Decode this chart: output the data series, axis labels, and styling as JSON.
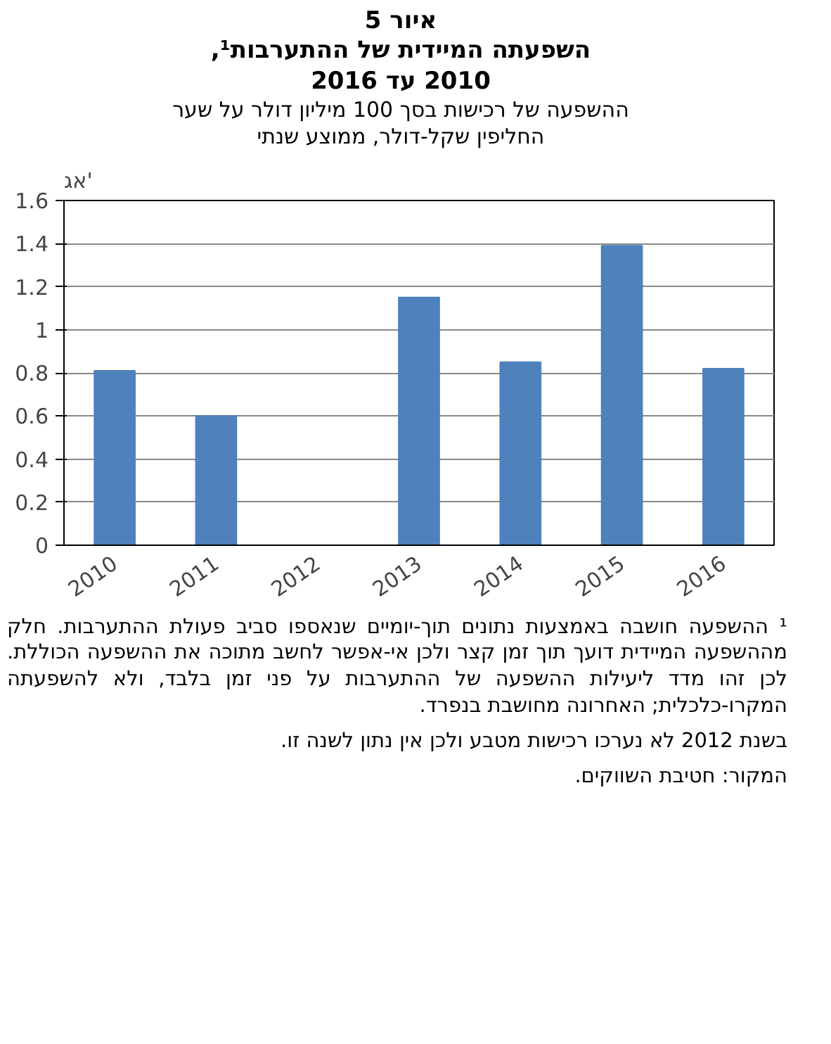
{
  "chart_data": {
    "type": "bar",
    "title": "איור 5\nהשפעתה המיידית של ההתערבות¹,\n2010 עד 2016",
    "subtitle": "ההשפעה של רכישות בסך 100 מיליון דולר על שער\nהחליפין שקל-דולר, ממוצע שנתי",
    "ylabel": "אג'",
    "categories": [
      "2010",
      "2011",
      "2012",
      "2013",
      "2014",
      "2015",
      "2016"
    ],
    "values": [
      0.81,
      0.6,
      null,
      1.15,
      0.85,
      1.39,
      0.82
    ],
    "color": "#4f81bd",
    "ylim": [
      0,
      1.6
    ],
    "yticks": [
      0,
      0.2,
      0.4,
      0.6,
      0.8,
      1,
      1.2,
      1.4,
      1.6
    ],
    "grid": "y",
    "annotations": [
      "¹ ההשפעה חושבה באמצעות נתונים תוך-יומיים שנאספו סביב פעולת ההתערבות. חלק מההשפעה המיידית דועך תוך זמן קצר ולכן אי-אפשר לחשב מתוכה את ההשפעה הכוללת. לכן זהו מדד ליעילות ההשפעה של ההתערבות על פני זמן בלבד, ולא להשפעתה המקרו-כלכלית; האחרונה מחושבת בנפרד.",
      "בשנת 2012 לא נערכו רכישות מטבע ולכן אין נתון לשנה זו.",
      "המקור: חטיבת השווקים."
    ]
  }
}
